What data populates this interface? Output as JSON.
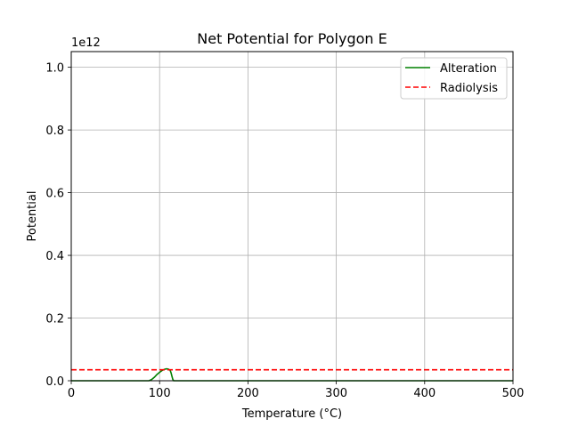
{
  "chart_data": {
    "type": "line",
    "title": "Net Potential for Polygon E",
    "xlabel": "Temperature (°C)",
    "ylabel": "Potential",
    "offset_text": "1e12",
    "xlim": [
      0,
      500
    ],
    "ylim": [
      0,
      1.05
    ],
    "x_ticks": [
      0,
      100,
      200,
      300,
      400,
      500
    ],
    "x_tick_labels": [
      "0",
      "100",
      "200",
      "300",
      "400",
      "500"
    ],
    "y_ticks": [
      0.0,
      0.2,
      0.4,
      0.6,
      0.8,
      1.0
    ],
    "y_tick_labels": [
      "0.0",
      "0.2",
      "0.4",
      "0.6",
      "0.8",
      "1.0"
    ],
    "grid": true,
    "legend_position": "top-right",
    "series": [
      {
        "name": "Alteration",
        "color": "#008000",
        "style": "solid",
        "x": [
          0,
          88,
          91,
          94,
          97,
          100,
          103,
          106,
          108,
          110,
          112,
          113,
          114,
          115,
          116,
          120,
          200,
          300,
          400,
          500
        ],
        "y": [
          0,
          0,
          0.004,
          0.011,
          0.02,
          0.027,
          0.033,
          0.037,
          0.038,
          0.037,
          0.033,
          0.025,
          0.014,
          0.004,
          0,
          0,
          0,
          0,
          0,
          0
        ]
      },
      {
        "name": "Radiolysis",
        "color": "#ff0000",
        "style": "dashed",
        "x": [
          0,
          500
        ],
        "y": [
          0.035,
          0.035
        ]
      }
    ]
  }
}
